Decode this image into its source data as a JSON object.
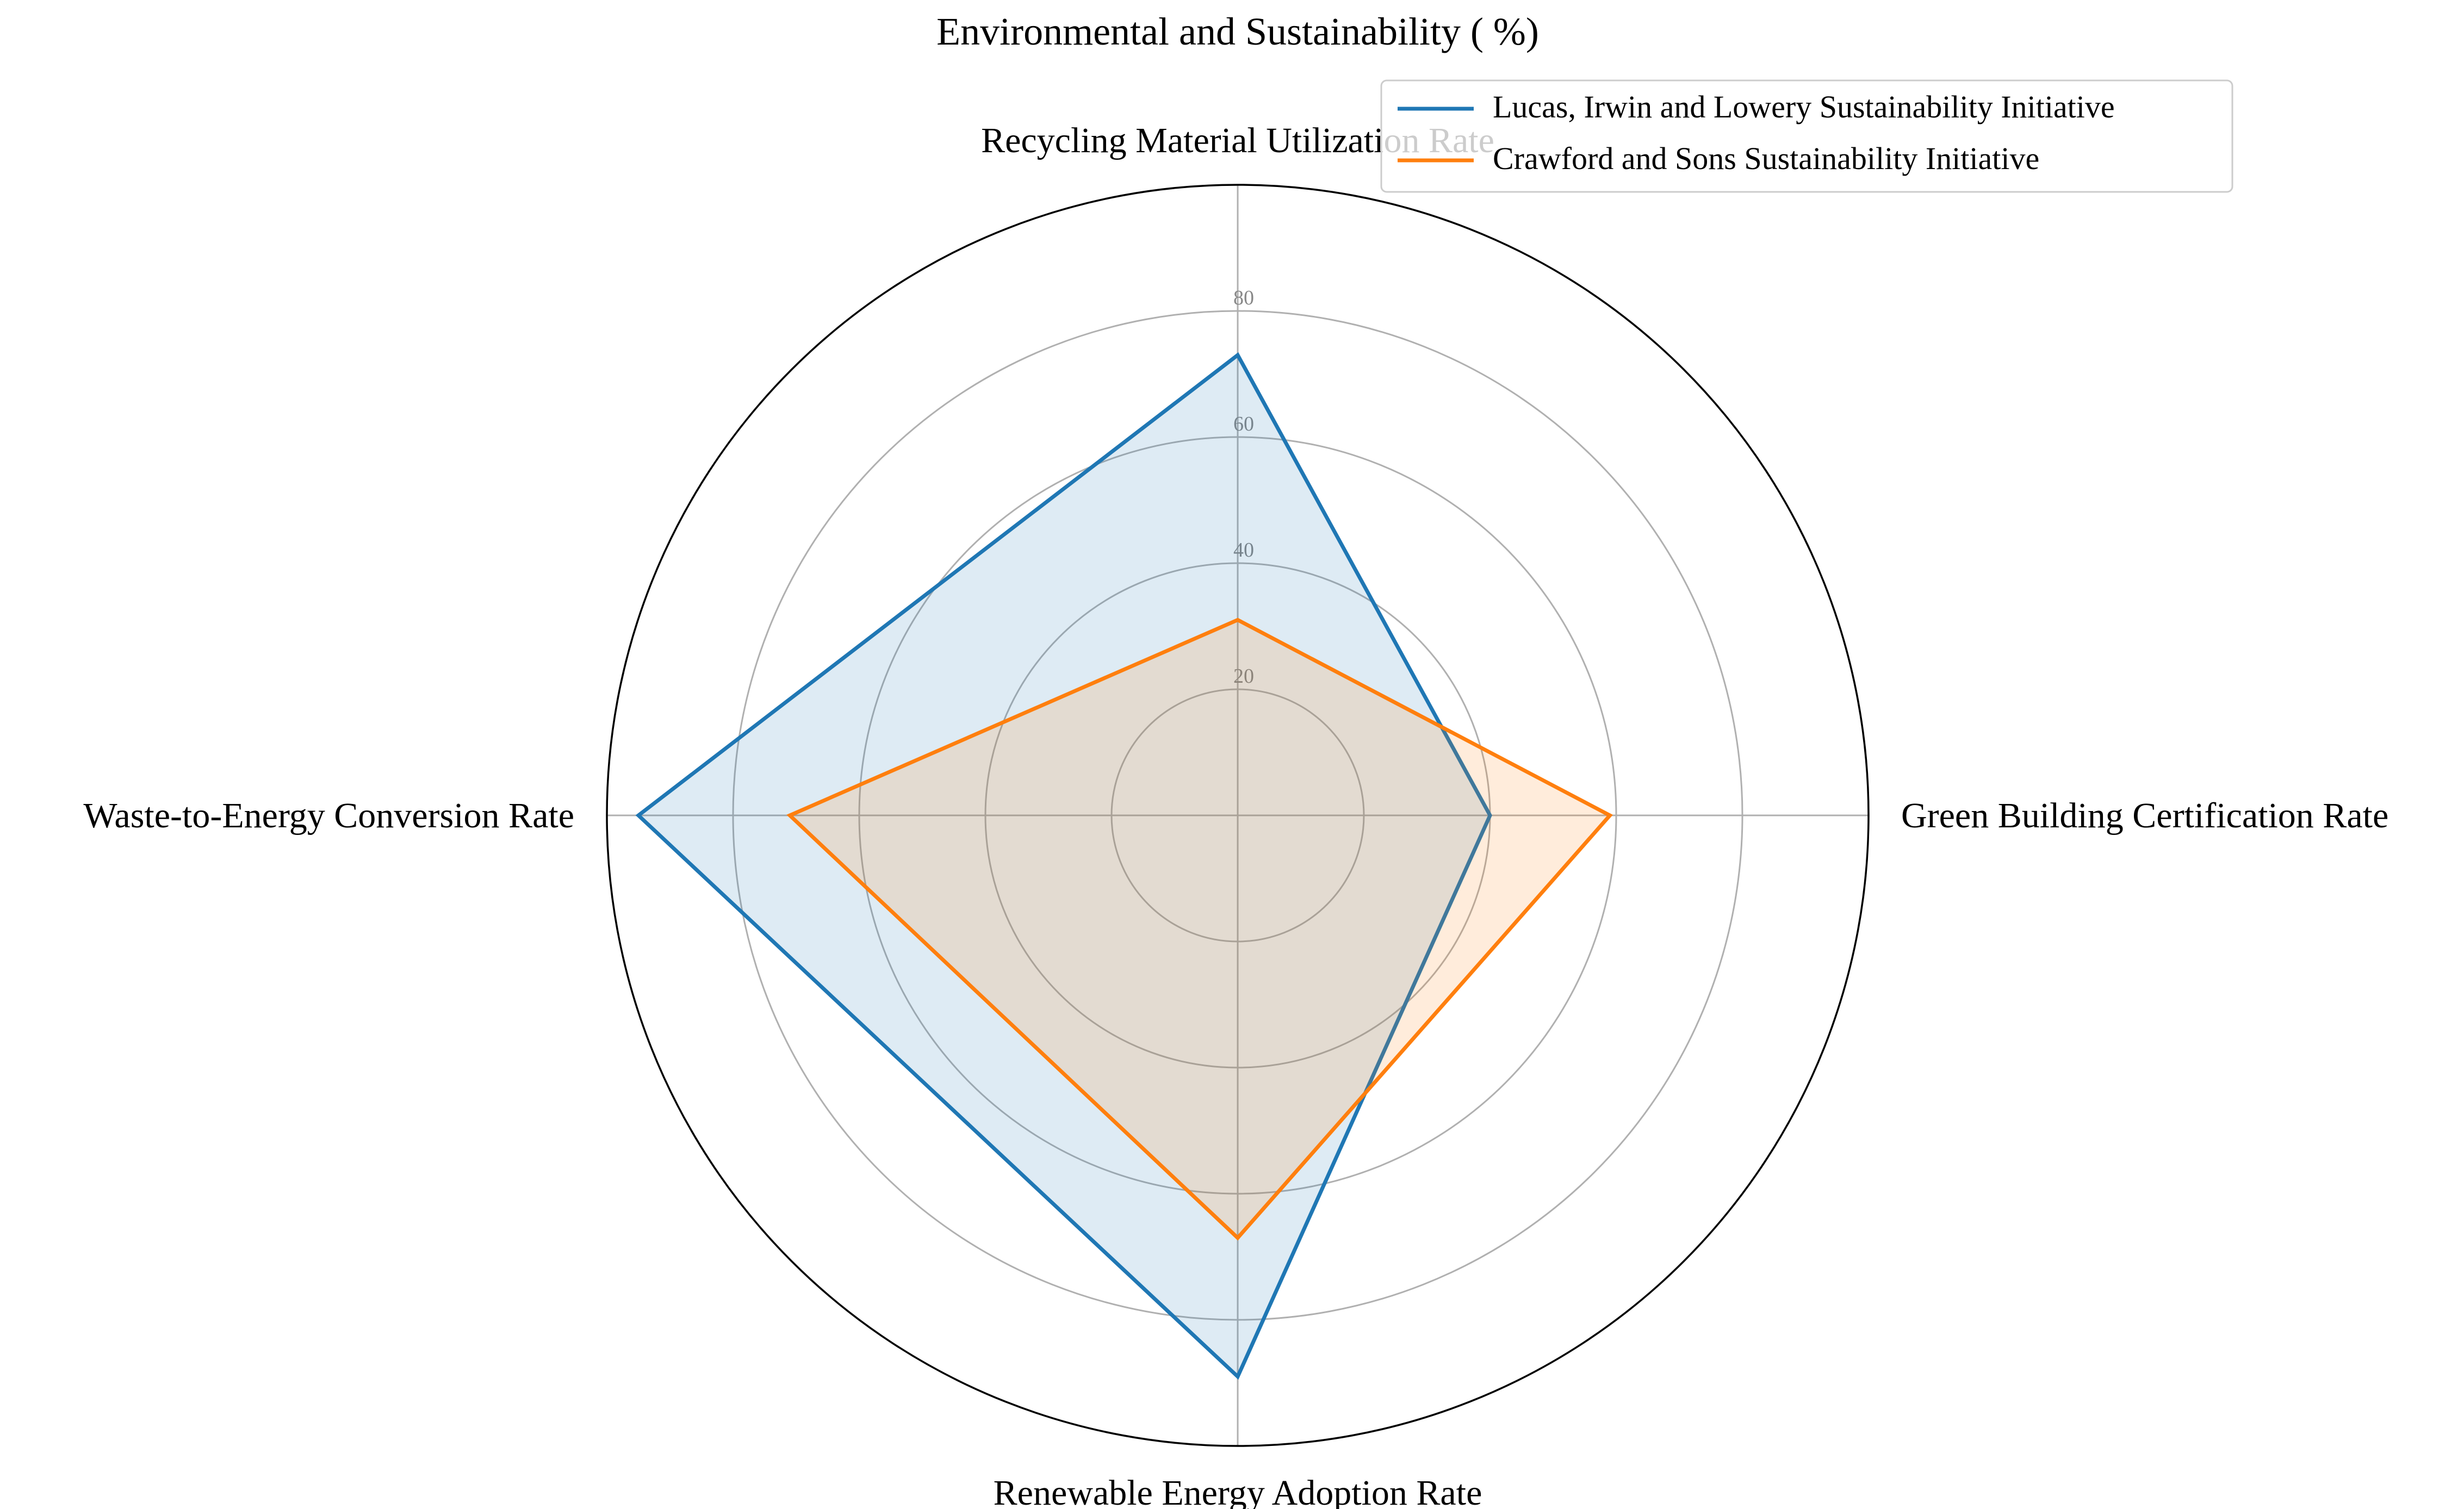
{
  "chart_data": {
    "type": "radar",
    "title": "Environmental and Sustainability ( %)",
    "categories": [
      "Recycling Material Utilization Rate",
      "Green Building Certification Rate",
      "Renewable Energy Adoption Rate",
      "Waste-to-Energy Conversion Rate"
    ],
    "series": [
      {
        "name": "Lucas, Irwin and Lowery Sustainability Initiative",
        "values": [
          73,
          40,
          89,
          95
        ],
        "color": "#1f77b4"
      },
      {
        "name": "Crawford and Sons Sustainability Initiative",
        "values": [
          31,
          59,
          67,
          71
        ],
        "color": "#ff7f0e"
      }
    ],
    "rlim": [
      0,
      100
    ],
    "radial_ticks": [
      20,
      40,
      60,
      80
    ],
    "radial_tick_labels": [
      "20",
      "40",
      "60",
      "80"
    ],
    "grid": true,
    "legend_position": "top-right"
  }
}
